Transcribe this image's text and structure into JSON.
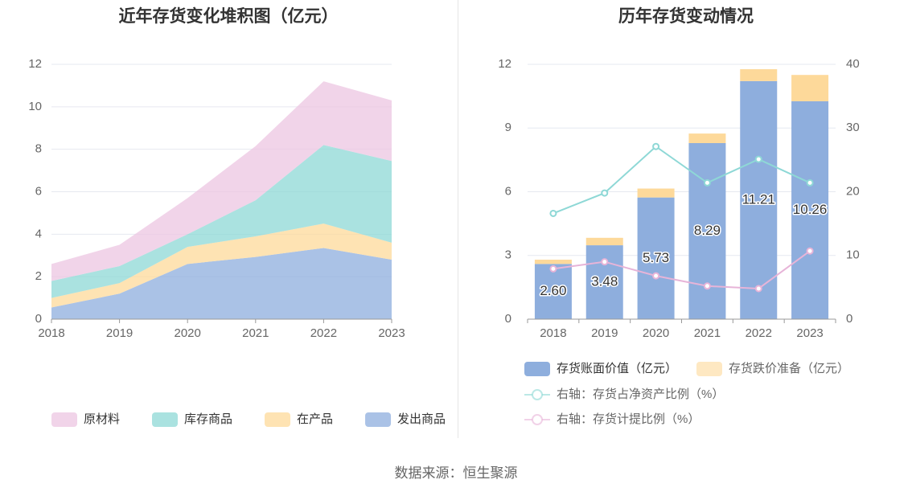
{
  "source": "数据来源：恒生聚源",
  "chart_data": [
    {
      "type": "area",
      "title": "近年存货变化堆积图（亿元）",
      "stacked": true,
      "x": [
        "2018",
        "2019",
        "2020",
        "2021",
        "2022",
        "2023"
      ],
      "ylim": [
        0,
        12
      ],
      "yticks": [
        "0",
        "2",
        "4",
        "6",
        "8",
        "10",
        "12"
      ],
      "grid": true,
      "legend_position": "bottom",
      "series": [
        {
          "name": "发出商品",
          "color": "#8eaedd",
          "values": [
            0.55,
            1.2,
            2.6,
            2.93,
            3.35,
            2.8
          ]
        },
        {
          "name": "在产品",
          "color": "#fdd99a",
          "values": [
            0.45,
            0.5,
            0.8,
            0.97,
            1.15,
            0.8
          ]
        },
        {
          "name": "库存商品",
          "color": "#8ed8d6",
          "values": [
            0.8,
            0.8,
            0.6,
            1.7,
            3.7,
            3.85
          ]
        },
        {
          "name": "原材料",
          "color": "#ecc5e1",
          "values": [
            0.8,
            1.0,
            1.7,
            2.55,
            3.0,
            2.85
          ]
        }
      ],
      "legend_order": [
        "原材料",
        "库存商品",
        "在产品",
        "发出商品"
      ]
    },
    {
      "type": "bar",
      "title": "历年存货变动情况",
      "categories": [
        "2018",
        "2019",
        "2020",
        "2021",
        "2022",
        "2023"
      ],
      "ylim": [
        0,
        12
      ],
      "yticks": [
        "0",
        "3",
        "6",
        "9",
        "12"
      ],
      "y2lim": [
        0,
        40
      ],
      "y2ticks": [
        "0",
        "10",
        "20",
        "30",
        "40"
      ],
      "grid": true,
      "legend_position": "bottom",
      "bar_series": [
        {
          "name": "存货账面价值（亿元）",
          "color": "#8eaedd",
          "values": [
            2.6,
            3.48,
            5.73,
            8.29,
            11.21,
            10.26
          ],
          "labels": [
            "2.60",
            "3.48",
            "5.73",
            "8.29",
            "11.21",
            "10.26"
          ]
        },
        {
          "name": "存货跌价准备（亿元）",
          "color": "#fdd99a",
          "values": [
            0.2,
            0.35,
            0.42,
            0.45,
            0.56,
            1.24
          ]
        }
      ],
      "line_series": [
        {
          "name": "右轴：存货占净资产比例（%）",
          "color": "#8ed8d6",
          "axis": "right",
          "values": [
            16.6,
            19.8,
            27.1,
            21.4,
            25.1,
            21.4
          ]
        },
        {
          "name": "右轴：存货计提比例（%）",
          "color": "#e7b4d8",
          "axis": "right",
          "values": [
            7.9,
            9.0,
            6.8,
            5.2,
            4.8,
            10.7
          ]
        }
      ]
    }
  ]
}
